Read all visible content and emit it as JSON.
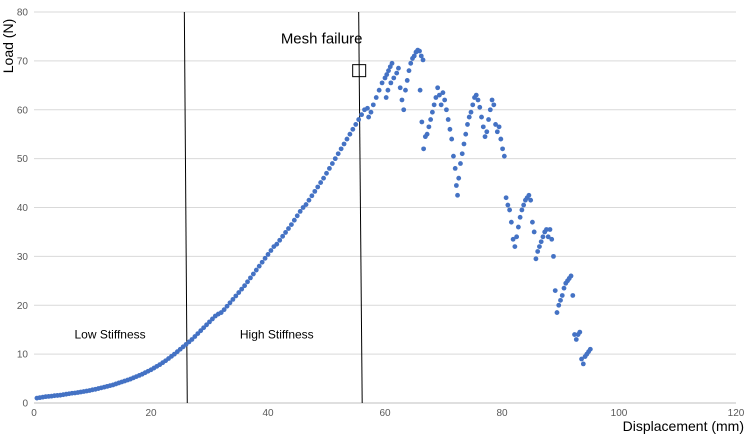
{
  "chart_data": {
    "type": "scatter",
    "title": "",
    "xlabel": "Displacement (mm)",
    "ylabel": "Load (N)",
    "xlim": [
      0,
      120
    ],
    "ylim": [
      0,
      80
    ],
    "x_ticks": [
      0,
      20,
      40,
      60,
      80,
      100,
      120
    ],
    "y_ticks": [
      0,
      10,
      20,
      30,
      40,
      50,
      60,
      70,
      80
    ],
    "grid": "horizontal",
    "legend": "none",
    "marker_color": "#4472C4",
    "series": [
      {
        "points": [
          [
            0.5,
            1.0
          ],
          [
            1,
            1.1
          ],
          [
            1.5,
            1.2
          ],
          [
            2,
            1.3
          ],
          [
            2.5,
            1.35
          ],
          [
            3,
            1.4
          ],
          [
            3.5,
            1.5
          ],
          [
            4,
            1.55
          ],
          [
            4.5,
            1.6
          ],
          [
            5,
            1.7
          ],
          [
            5.5,
            1.8
          ],
          [
            6,
            1.9
          ],
          [
            6.5,
            2.0
          ],
          [
            7,
            2.05
          ],
          [
            7.5,
            2.15
          ],
          [
            8,
            2.25
          ],
          [
            8.5,
            2.35
          ],
          [
            9,
            2.45
          ],
          [
            9.5,
            2.55
          ],
          [
            10,
            2.7
          ],
          [
            10.5,
            2.8
          ],
          [
            11,
            2.95
          ],
          [
            11.5,
            3.1
          ],
          [
            12,
            3.25
          ],
          [
            12.5,
            3.4
          ],
          [
            13,
            3.55
          ],
          [
            13.5,
            3.7
          ],
          [
            14,
            3.9
          ],
          [
            14.5,
            4.1
          ],
          [
            15,
            4.3
          ],
          [
            15.5,
            4.5
          ],
          [
            16,
            4.7
          ],
          [
            16.5,
            4.9
          ],
          [
            17,
            5.15
          ],
          [
            17.5,
            5.4
          ],
          [
            18,
            5.65
          ],
          [
            18.5,
            5.9
          ],
          [
            19,
            6.2
          ],
          [
            19.5,
            6.5
          ],
          [
            20,
            6.8
          ],
          [
            20.5,
            7.15
          ],
          [
            21,
            7.5
          ],
          [
            21.5,
            7.85
          ],
          [
            22,
            8.25
          ],
          [
            22.5,
            8.65
          ],
          [
            23,
            9.1
          ],
          [
            23.5,
            9.55
          ],
          [
            24,
            10.0
          ],
          [
            24.5,
            10.5
          ],
          [
            25,
            11.0
          ],
          [
            25.5,
            11.5
          ],
          [
            26,
            12.0
          ],
          [
            26.5,
            12.5
          ],
          [
            27,
            13.0
          ],
          [
            27.5,
            13.6
          ],
          [
            28,
            14.2
          ],
          [
            28.5,
            14.8
          ],
          [
            29,
            15.4
          ],
          [
            29.5,
            16.0
          ],
          [
            30,
            16.6
          ],
          [
            30.5,
            17.2
          ],
          [
            31,
            17.8
          ],
          [
            31.5,
            18.2
          ],
          [
            32,
            18.5
          ],
          [
            32.5,
            19.1
          ],
          [
            33,
            19.8
          ],
          [
            33.5,
            20.5
          ],
          [
            34,
            21.2
          ],
          [
            34.5,
            21.9
          ],
          [
            35,
            22.6
          ],
          [
            35.5,
            23.3
          ],
          [
            36,
            24.0
          ],
          [
            36.5,
            24.8
          ],
          [
            37,
            25.6
          ],
          [
            37.5,
            26.4
          ],
          [
            38,
            27.2
          ],
          [
            38.5,
            28.0
          ],
          [
            39,
            28.8
          ],
          [
            39.5,
            29.6
          ],
          [
            40,
            30.4
          ],
          [
            40.5,
            31.2
          ],
          [
            41,
            32.0
          ],
          [
            41.5,
            32.5
          ],
          [
            42,
            33.3
          ],
          [
            42.5,
            34.1
          ],
          [
            43,
            34.9
          ],
          [
            43.5,
            35.7
          ],
          [
            44,
            36.5
          ],
          [
            44.5,
            37.4
          ],
          [
            45,
            38.3
          ],
          [
            45.5,
            39.2
          ],
          [
            46,
            40.0
          ],
          [
            46.5,
            40.6
          ],
          [
            47,
            41.5
          ],
          [
            47.5,
            42.4
          ],
          [
            48,
            43.3
          ],
          [
            48.5,
            44.2
          ],
          [
            49,
            45.1
          ],
          [
            49.5,
            46.0
          ],
          [
            50,
            47.0
          ],
          [
            50.5,
            48.0
          ],
          [
            51,
            49.0
          ],
          [
            51.5,
            50.0
          ],
          [
            52,
            51.0
          ],
          [
            52.5,
            52.0
          ],
          [
            53,
            53.0
          ],
          [
            53.5,
            54.0
          ],
          [
            54,
            55.0
          ],
          [
            54.5,
            56.0
          ],
          [
            55,
            57.0
          ],
          [
            55.5,
            58.0
          ],
          [
            56,
            59.0
          ],
          [
            56.5,
            60.0
          ],
          [
            57,
            60.3
          ],
          [
            57.2,
            58.5
          ],
          [
            57.6,
            59.5
          ],
          [
            58,
            61.0
          ],
          [
            58.5,
            62.5
          ],
          [
            59,
            64.0
          ],
          [
            59.5,
            65.5
          ],
          [
            60,
            66.5
          ],
          [
            60.3,
            67.2
          ],
          [
            60.6,
            68.0
          ],
          [
            60.9,
            68.8
          ],
          [
            61.2,
            69.5
          ],
          [
            60.2,
            62.5
          ],
          [
            60.5,
            64.0
          ],
          [
            61,
            65.5
          ],
          [
            61.5,
            66.5
          ],
          [
            62,
            67.5
          ],
          [
            62.3,
            68.5
          ],
          [
            62.6,
            64.5
          ],
          [
            62.9,
            62.0
          ],
          [
            63.2,
            60.0
          ],
          [
            63.5,
            64.0
          ],
          [
            63.8,
            66.0
          ],
          [
            64.1,
            68.0
          ],
          [
            64.4,
            69.5
          ],
          [
            64.7,
            70.5
          ],
          [
            65,
            71.0
          ],
          [
            65.3,
            71.8
          ],
          [
            65.6,
            72.2
          ],
          [
            65.9,
            72.0
          ],
          [
            66.2,
            71.0
          ],
          [
            66.5,
            70.2
          ],
          [
            66,
            64.0
          ],
          [
            66.3,
            57.5
          ],
          [
            66.6,
            52.0
          ],
          [
            66.9,
            54.5
          ],
          [
            67.2,
            55.0
          ],
          [
            67.5,
            56.5
          ],
          [
            67.8,
            58.0
          ],
          [
            68.1,
            59.5
          ],
          [
            68.4,
            61.0
          ],
          [
            68.7,
            62.5
          ],
          [
            69,
            64.5
          ],
          [
            69.3,
            63.0
          ],
          [
            69.6,
            61.0
          ],
          [
            69.9,
            63.5
          ],
          [
            70.2,
            62.0
          ],
          [
            70.5,
            60.0
          ],
          [
            70.8,
            58.0
          ],
          [
            71.1,
            56.0
          ],
          [
            71.4,
            54.0
          ],
          [
            71.7,
            50.5
          ],
          [
            72,
            48.0
          ],
          [
            72.2,
            44.5
          ],
          [
            72.4,
            42.5
          ],
          [
            72.6,
            46.0
          ],
          [
            72.9,
            49.0
          ],
          [
            73.2,
            51.0
          ],
          [
            73.5,
            53.0
          ],
          [
            73.8,
            55.0
          ],
          [
            74.1,
            57.0
          ],
          [
            74.4,
            58.5
          ],
          [
            74.7,
            59.5
          ],
          [
            75,
            61.0
          ],
          [
            75.3,
            62.5
          ],
          [
            75.6,
            63.0
          ],
          [
            75.9,
            62.0
          ],
          [
            76.2,
            60.5
          ],
          [
            76.5,
            58.5
          ],
          [
            76.8,
            56.5
          ],
          [
            77.1,
            54.5
          ],
          [
            77.4,
            55.5
          ],
          [
            77.7,
            58.0
          ],
          [
            78,
            60.0
          ],
          [
            78.3,
            62.0
          ],
          [
            78.6,
            61.0
          ],
          [
            78.9,
            57.0
          ],
          [
            79.2,
            55.5
          ],
          [
            79.5,
            56.5
          ],
          [
            79.8,
            54.0
          ],
          [
            80.1,
            52.0
          ],
          [
            80.4,
            50.5
          ],
          [
            80.7,
            42.0
          ],
          [
            81,
            40.5
          ],
          [
            81.3,
            39.5
          ],
          [
            81.6,
            37.0
          ],
          [
            81.9,
            33.5
          ],
          [
            82.2,
            32.0
          ],
          [
            82.5,
            34.0
          ],
          [
            82.8,
            36.0
          ],
          [
            83.1,
            38.0
          ],
          [
            83.4,
            39.5
          ],
          [
            83.7,
            40.5
          ],
          [
            84,
            41.5
          ],
          [
            84.3,
            42.0
          ],
          [
            84.6,
            42.5
          ],
          [
            84.9,
            41.5
          ],
          [
            85.2,
            37.0
          ],
          [
            85.5,
            35.0
          ],
          [
            85.8,
            29.5
          ],
          [
            86.1,
            31.0
          ],
          [
            86.4,
            32.0
          ],
          [
            86.7,
            33.0
          ],
          [
            87,
            34.0
          ],
          [
            87.3,
            35.0
          ],
          [
            87.6,
            35.5
          ],
          [
            87.9,
            34.0
          ],
          [
            88.2,
            35.5
          ],
          [
            88.5,
            33.5
          ],
          [
            88.8,
            30.0
          ],
          [
            89.1,
            23.0
          ],
          [
            89.4,
            18.5
          ],
          [
            89.7,
            20.0
          ],
          [
            90,
            21.0
          ],
          [
            90.3,
            22.0
          ],
          [
            90.6,
            23.5
          ],
          [
            90.9,
            24.5
          ],
          [
            91.2,
            25.0
          ],
          [
            91.5,
            25.5
          ],
          [
            91.8,
            26.0
          ],
          [
            92.1,
            22.0
          ],
          [
            92.4,
            14.0
          ],
          [
            92.7,
            13.0
          ],
          [
            93,
            14.0
          ],
          [
            93.3,
            14.5
          ],
          [
            93.6,
            9.0
          ],
          [
            93.9,
            8.0
          ],
          [
            94.2,
            9.5
          ],
          [
            94.5,
            10.0
          ],
          [
            94.8,
            10.5
          ],
          [
            95.1,
            11.0
          ]
        ]
      }
    ],
    "annotations": [
      {
        "text": "Mesh failure",
        "x": 55.5,
        "y": 68
      },
      {
        "text": "Low Stiffness",
        "x": 13,
        "y": 14
      },
      {
        "text": "High Stiffness",
        "x": 41.5,
        "y": 14
      }
    ],
    "vertical_lines": [
      {
        "x_top": 25.7,
        "x_bottom": 26.2
      },
      {
        "x_top": 55.5,
        "x_bottom": 56.1
      }
    ]
  }
}
